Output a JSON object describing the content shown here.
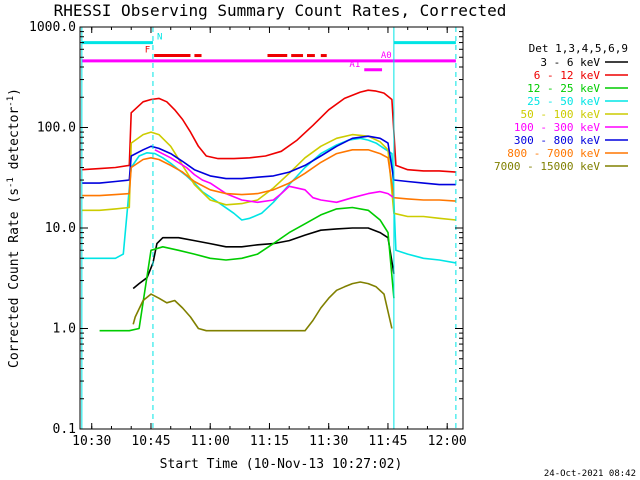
{
  "chart_data": {
    "type": "line",
    "title": "RHESSI Observing Summary Count Rates, Corrected",
    "xlabel": "Start Time (10-Nov-13 10:27:02)",
    "ylabel_parts": {
      "main": "Corrected Count Rate (s",
      "exp1": "-1",
      "mid": " detector",
      "exp2": "-1",
      "end": ")"
    },
    "date_stamp": "24-Oct-2021 08:42",
    "x_ticks": [
      {
        "min": 630,
        "label": "10:30"
      },
      {
        "min": 645,
        "label": "10:45"
      },
      {
        "min": 660,
        "label": "11:00"
      },
      {
        "min": 675,
        "label": "11:15"
      },
      {
        "min": 690,
        "label": "11:30"
      },
      {
        "min": 705,
        "label": "11:45"
      },
      {
        "min": 720,
        "label": "12:00"
      }
    ],
    "y_ticks": [
      {
        "v": 0.1,
        "label": "0.1"
      },
      {
        "v": 1,
        "label": "1.0"
      },
      {
        "v": 10,
        "label": "10.0"
      },
      {
        "v": 100,
        "label": "100.0"
      },
      {
        "v": 1000,
        "label": "1000.0"
      }
    ],
    "xlim": [
      627.03,
      724
    ],
    "ylim": [
      0.1,
      1000
    ],
    "y_scale": "log",
    "grid": false,
    "legend_placement": "right",
    "legend_title": "Det 1,3,4,5,6,9",
    "vlines": [
      {
        "min": 627.5,
        "color": "#00e5e5",
        "dash": false
      },
      {
        "min": 645.5,
        "color": "#00e5e5",
        "dash": true
      },
      {
        "min": 706.5,
        "color": "#00e5e5",
        "dash": false
      },
      {
        "min": 722.2,
        "color": "#00e5e5",
        "dash": true
      }
    ],
    "flag_bars": [
      {
        "label": "N",
        "color": "#00e5e5",
        "y": 700,
        "segments": [
          [
            627.5,
            645.5
          ],
          [
            706.5,
            722.2
          ]
        ]
      },
      {
        "label": "F",
        "color": "#ee0000",
        "y": 520,
        "segments": [
          [
            645.8,
            655
          ],
          [
            656,
            657.8
          ],
          [
            674.5,
            679.5
          ],
          [
            680.5,
            683.5
          ],
          [
            684.5,
            686.5
          ],
          [
            688,
            689.5
          ]
        ]
      },
      {
        "label": "A0",
        "color": "#ff00ff",
        "y": 460,
        "segments": [
          [
            627.5,
            722.2
          ]
        ]
      },
      {
        "label": "A1",
        "color": "#ff00ff",
        "y": 375,
        "segments": [
          [
            699,
            703.5
          ]
        ]
      }
    ],
    "series": [
      {
        "name": "3 - 6 keV",
        "color": "#000000",
        "x": [
          640.5,
          642,
          644,
          645.5,
          646.5,
          648,
          652,
          656,
          660,
          664,
          668,
          672,
          676,
          680,
          684,
          688,
          692,
          696,
          700,
          703,
          705,
          706.5
        ],
        "y": [
          2.5,
          2.8,
          3.2,
          4.5,
          7.0,
          8.0,
          8.0,
          7.5,
          7.0,
          6.5,
          6.5,
          6.8,
          7.0,
          7.5,
          8.5,
          9.5,
          9.8,
          10.0,
          10.0,
          9.0,
          8.0,
          3.5
        ]
      },
      {
        "name": "6 - 12 keV",
        "color": "#ee0000",
        "x": [
          627.5,
          632,
          636,
          639.5,
          640,
          643,
          645,
          647,
          649,
          651,
          653,
          655,
          657,
          659,
          662,
          666,
          670,
          674,
          678,
          682,
          686,
          690,
          694,
          698,
          700,
          702,
          704,
          706,
          707,
          710,
          714,
          718,
          722.2
        ],
        "y": [
          38,
          39,
          40,
          42,
          140,
          180,
          190,
          195,
          180,
          150,
          120,
          90,
          65,
          52,
          49,
          49,
          50,
          52,
          58,
          75,
          105,
          150,
          195,
          225,
          235,
          230,
          220,
          190,
          42,
          38,
          37,
          37,
          36
        ]
      },
      {
        "name": "12 - 25 keV",
        "color": "#00cc00",
        "x": [
          632,
          636,
          639.5,
          642,
          645,
          648,
          652,
          656,
          660,
          664,
          668,
          672,
          676,
          680,
          684,
          688,
          692,
          696,
          700,
          703,
          705,
          706.5
        ],
        "y": [
          0.95,
          0.95,
          0.95,
          1.0,
          6.0,
          6.5,
          6.0,
          5.5,
          5.0,
          4.8,
          5.0,
          5.5,
          7.0,
          9.0,
          11.0,
          13.5,
          15.5,
          16.0,
          15.0,
          12.0,
          9.0,
          2.0
        ]
      },
      {
        "name": "25 - 50 keV",
        "color": "#00e5e5",
        "x": [
          627.5,
          632,
          636,
          638,
          640,
          642,
          644,
          646,
          648,
          650,
          652,
          654,
          656,
          658,
          662,
          666,
          668,
          670,
          673,
          676,
          680,
          684,
          688,
          692,
          695,
          698,
          700,
          702,
          704,
          706,
          707,
          710,
          714,
          718,
          722.2
        ],
        "y": [
          5.0,
          5.0,
          5.0,
          5.5,
          40,
          52,
          56,
          55,
          50,
          44,
          38,
          33,
          28,
          23,
          18,
          14,
          12,
          12.5,
          14,
          18,
          27,
          40,
          55,
          67,
          75,
          78,
          75,
          70,
          62,
          55,
          6.0,
          5.5,
          5.0,
          4.8,
          4.5
        ]
      },
      {
        "name": "50 - 100 keV",
        "color": "#cccc00",
        "x": [
          627.5,
          632,
          636,
          639.5,
          640,
          643,
          645,
          647,
          650,
          653,
          656,
          660,
          664,
          668,
          672,
          676,
          680,
          684,
          688,
          692,
          696,
          700,
          703,
          705,
          706.5,
          710,
          714,
          718,
          722.2
        ],
        "y": [
          15,
          15,
          15.5,
          16,
          70,
          85,
          90,
          85,
          65,
          42,
          27,
          19,
          17,
          17.5,
          19,
          25,
          35,
          50,
          65,
          78,
          85,
          82,
          72,
          60,
          14,
          13,
          13,
          12.5,
          12
        ]
      },
      {
        "name": "100 - 300 keV",
        "color": "#ff00ff",
        "x": [
          646,
          650,
          654,
          656,
          658,
          660,
          664,
          668,
          672,
          676,
          678,
          680,
          684,
          686,
          688,
          692,
          696,
          700,
          703,
          705,
          706.5
        ],
        "y": [
          60,
          50,
          40,
          34,
          30,
          28,
          22,
          19,
          18,
          19,
          22,
          26,
          24,
          20,
          19,
          18,
          20,
          22,
          23,
          22,
          20
        ]
      },
      {
        "name": "300 - 800 keV",
        "color": "#0000dd",
        "x": [
          627.5,
          632,
          636,
          639.5,
          640,
          643,
          645,
          647,
          650,
          653,
          656,
          660,
          664,
          668,
          672,
          676,
          680,
          684,
          688,
          692,
          696,
          700,
          703,
          705,
          706.5,
          710,
          714,
          718,
          722.2
        ],
        "y": [
          28,
          28,
          29,
          30,
          52,
          60,
          65,
          62,
          55,
          46,
          38,
          33,
          31,
          31,
          32,
          33,
          36,
          42,
          52,
          65,
          78,
          82,
          78,
          70,
          30,
          29,
          28,
          27,
          27
        ]
      },
      {
        "name": "800 - 7000 keV",
        "color": "#ff7700",
        "x": [
          627.5,
          632,
          636,
          639.5,
          640,
          643,
          645,
          647,
          650,
          653,
          656,
          660,
          664,
          668,
          672,
          676,
          680,
          684,
          688,
          692,
          696,
          700,
          703,
          705,
          706.5,
          710,
          714,
          718,
          722.2
        ],
        "y": [
          21,
          21,
          21.5,
          22,
          40,
          48,
          50,
          48,
          42,
          36,
          29,
          24,
          22,
          21.5,
          22,
          24,
          28,
          35,
          45,
          55,
          60,
          60,
          55,
          50,
          20,
          19.5,
          19,
          19,
          18.5
        ]
      },
      {
        "name": "7000 - 15000 keV",
        "color": "#808000",
        "x": [
          640.5,
          641,
          643,
          645,
          647,
          649,
          651,
          653,
          655,
          657,
          659,
          684,
          686,
          688,
          690,
          692,
          694,
          696,
          698,
          700,
          702,
          704,
          706
        ],
        "y": [
          1.1,
          1.3,
          1.9,
          2.2,
          2.0,
          1.8,
          1.9,
          1.6,
          1.3,
          1.0,
          0.95,
          0.95,
          1.2,
          1.6,
          2.0,
          2.4,
          2.6,
          2.8,
          2.9,
          2.8,
          2.6,
          2.2,
          1.0
        ]
      }
    ]
  }
}
